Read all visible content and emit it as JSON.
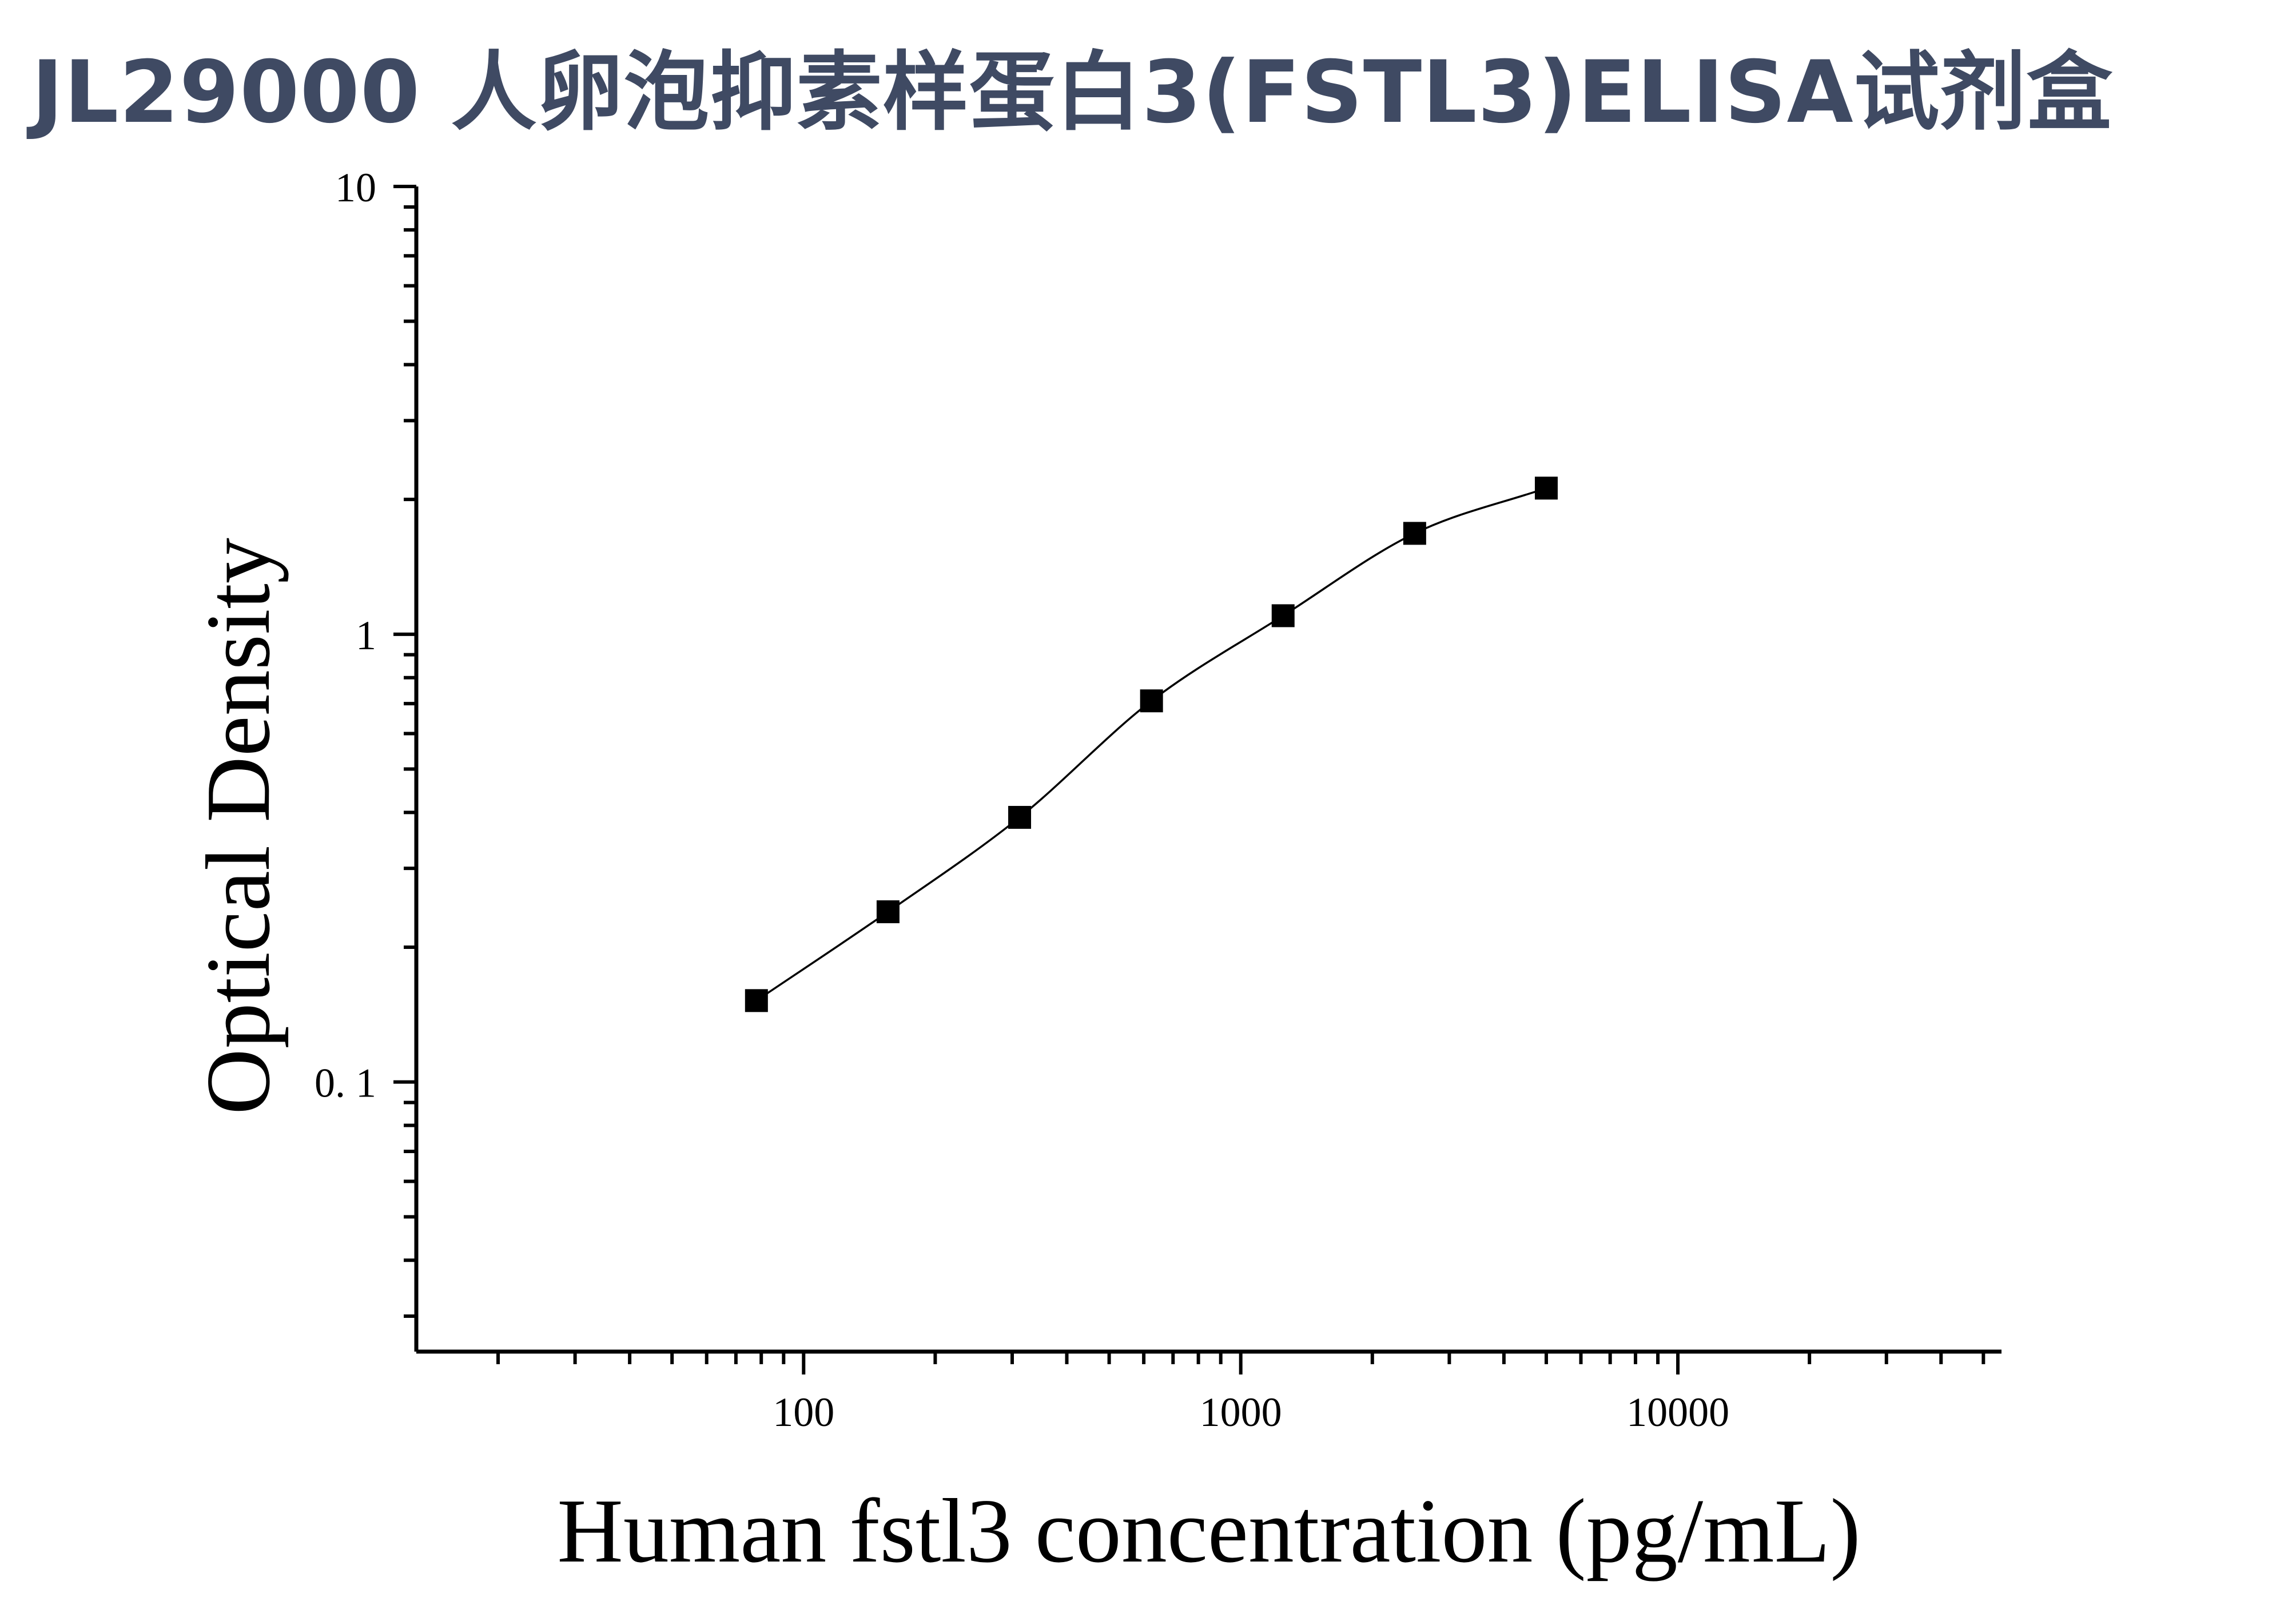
{
  "title": "JL29000 人卵泡抑素样蛋白3(FSTL3)ELISA试剂盒",
  "colors": {
    "title": "#3f4a63",
    "axis": "#000000",
    "marker": "#000000",
    "curve": "#000000"
  },
  "chart_data": {
    "type": "scatter",
    "title": "",
    "xlabel": "Human fstl3 concentration (pg/mL)",
    "ylabel": "Optical Density",
    "x_scale": "log",
    "y_scale": "log",
    "xlim": [
      13,
      55000
    ],
    "ylim": [
      0.025,
      10
    ],
    "x_ticks": [
      {
        "value": 100,
        "label": "100"
      },
      {
        "value": 1000,
        "label": "1000"
      },
      {
        "value": 10000,
        "label": "10000"
      }
    ],
    "y_ticks": [
      {
        "value": 0.1,
        "label": "0. 1"
      },
      {
        "value": 1,
        "label": "1"
      },
      {
        "value": 10,
        "label": "10"
      }
    ],
    "grid": false,
    "series": [
      {
        "marker": "square",
        "fit_curve": true,
        "points": [
          {
            "x": 78,
            "y": 0.152
          },
          {
            "x": 156,
            "y": 0.24
          },
          {
            "x": 312,
            "y": 0.39
          },
          {
            "x": 625,
            "y": 0.71
          },
          {
            "x": 1250,
            "y": 1.1
          },
          {
            "x": 2500,
            "y": 1.68
          },
          {
            "x": 5000,
            "y": 2.12
          }
        ]
      }
    ]
  }
}
